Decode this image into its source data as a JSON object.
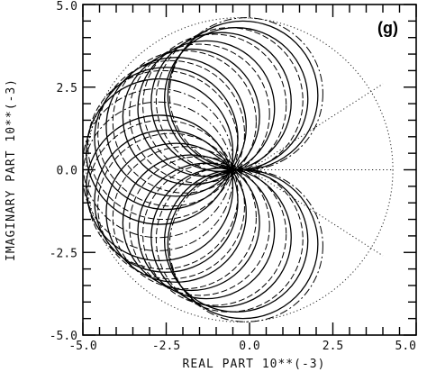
{
  "chart_data": {
    "type": "line",
    "panel_label": "(g)",
    "xlabel": "REAL PART 10**(-3)",
    "ylabel": "IMAGINARY PART 10**(-3)",
    "xlim": [
      -5.0,
      5.0
    ],
    "ylim": [
      -5.0,
      5.0
    ],
    "x_ticks": [
      "-5.0",
      "-2.5",
      "0.0",
      "2.5",
      "5.0"
    ],
    "y_ticks": [
      "5.0",
      "2.5",
      "0.0",
      "-2.5",
      "-5.0"
    ],
    "grid": false,
    "envelope": {
      "style": "dotted",
      "center": [
        -0.3,
        0.0
      ],
      "radius": 4.6
    },
    "circle_families": [
      {
        "name_hidden": true,
        "style": "solid-dense",
        "circles": [
          [
            -0.4,
            2.15,
            2.15
          ],
          [
            -0.2,
            2.25,
            2.25
          ],
          [
            -0.85,
            2.05,
            2.1
          ],
          [
            -1.3,
            1.85,
            2.05
          ],
          [
            -1.75,
            1.6,
            2.05
          ],
          [
            -2.2,
            1.3,
            2.1
          ],
          [
            -2.5,
            0.95,
            2.15
          ],
          [
            -2.7,
            0.55,
            2.2
          ],
          [
            -0.4,
            -2.15,
            2.15
          ],
          [
            -0.2,
            -2.25,
            2.25
          ],
          [
            -0.85,
            -2.05,
            2.1
          ],
          [
            -1.3,
            -1.85,
            2.05
          ],
          [
            -1.75,
            -1.6,
            2.05
          ],
          [
            -2.2,
            -1.3,
            2.1
          ],
          [
            -2.5,
            -0.95,
            2.15
          ],
          [
            -2.7,
            -0.55,
            2.2
          ]
        ]
      },
      {
        "style": "dashed",
        "circles": [
          [
            -0.6,
            2.1,
            2.2
          ],
          [
            -1.05,
            1.95,
            2.15
          ],
          [
            -1.5,
            1.7,
            2.1
          ],
          [
            -1.95,
            1.45,
            2.15
          ],
          [
            -2.35,
            1.1,
            2.2
          ],
          [
            -2.6,
            0.75,
            2.25
          ],
          [
            -0.6,
            -2.1,
            2.2
          ],
          [
            -1.05,
            -1.95,
            2.15
          ],
          [
            -1.5,
            -1.7,
            2.1
          ],
          [
            -1.95,
            -1.45,
            2.15
          ],
          [
            -2.35,
            -1.1,
            2.2
          ],
          [
            -2.6,
            -0.75,
            2.25
          ]
        ]
      },
      {
        "style": "dash-dot",
        "circles": [
          [
            -0.1,
            2.3,
            2.3
          ],
          [
            -2.75,
            0.2,
            2.25
          ],
          [
            -2.75,
            -0.2,
            2.25
          ],
          [
            -0.1,
            -2.3,
            2.3
          ]
        ]
      }
    ],
    "radial_lines": [
      {
        "style": "dotted",
        "from": [
          0.0,
          0.0
        ],
        "to": [
          4.0,
          2.6
        ]
      },
      {
        "style": "dotted",
        "from": [
          0.0,
          0.0
        ],
        "to": [
          4.3,
          0.0
        ]
      },
      {
        "style": "dotted",
        "from": [
          0.0,
          0.0
        ],
        "to": [
          4.0,
          -2.6
        ]
      }
    ]
  }
}
